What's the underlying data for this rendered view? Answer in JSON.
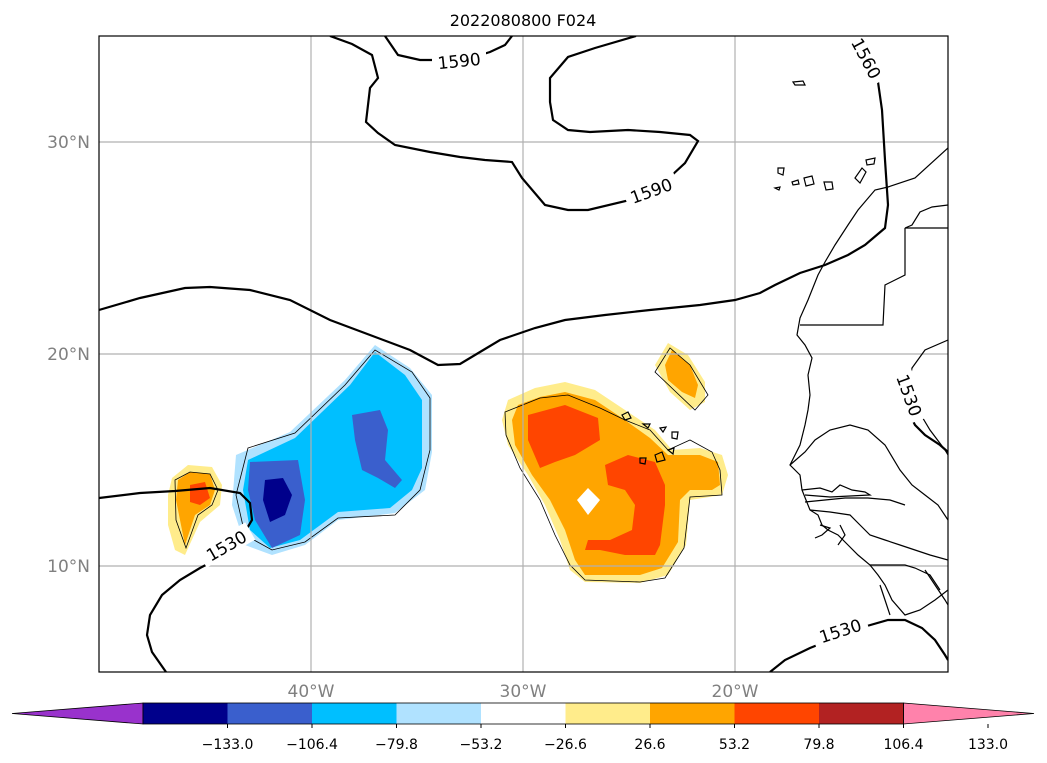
{
  "map": {
    "title": "2022080800 F024",
    "lat_ticks": [
      {
        "value": 30,
        "label": "30°N"
      },
      {
        "value": 20,
        "label": "20°N"
      },
      {
        "value": 10,
        "label": "10°N"
      }
    ],
    "lon_ticks": [
      {
        "value": -40,
        "label": "40°W"
      },
      {
        "value": -30,
        "label": "30°W"
      },
      {
        "value": -20,
        "label": "20°W"
      }
    ],
    "lon_range": [
      -50,
      -10
    ],
    "lat_range": [
      5,
      35
    ],
    "contour_labels": [
      "1590",
      "1590",
      "1560",
      "1530",
      "1530",
      "1530"
    ]
  },
  "colorbar": {
    "levels": [
      -133.0,
      -106.4,
      -79.8,
      -53.2,
      -26.6,
      26.6,
      53.2,
      79.8,
      106.4,
      133.0
    ],
    "labels": [
      "−133.0",
      "−106.4",
      "−79.8",
      "−53.2",
      "−26.6",
      "26.6",
      "53.2",
      "79.8",
      "106.4",
      "133.0"
    ],
    "colors": [
      "#9932cc",
      "#00008b",
      "#3a5fcd",
      "#00bfff",
      "#b0e2ff",
      "#ffffff",
      "#ffec8b",
      "#ffa500",
      "#ff4500",
      "#b22222",
      "#ff82ab"
    ]
  }
}
